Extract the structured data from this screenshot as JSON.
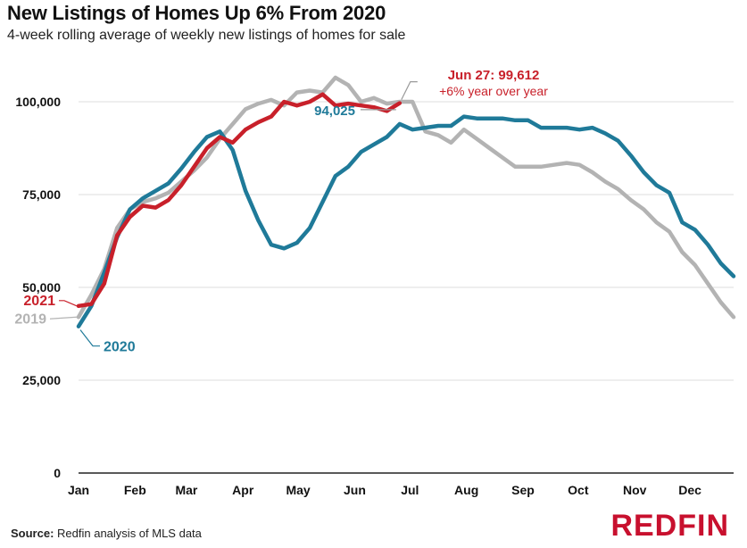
{
  "header": {
    "title": "New Listings of Homes Up 6% From 2020",
    "subtitle": "4-week rolling average of weekly new listings of homes for sale"
  },
  "footer": {
    "source_label": "Source:",
    "source_text": "Redfin analysis of MLS data",
    "brand": "REDFIN"
  },
  "colors": {
    "2019": "#b3b3b3",
    "2020": "#1f7a99",
    "2021": "#c8202a",
    "axis": "#222222",
    "grid": "#dddddd"
  },
  "chart_data": {
    "type": "line",
    "title": "New Listings of Homes Up 6% From 2020",
    "subtitle": "4-week rolling average of weekly new listings of homes for sale",
    "xlabel": "",
    "ylabel": "",
    "x_unit": "week of year",
    "xlim": [
      1,
      52
    ],
    "ylim": [
      0,
      106000
    ],
    "yticks": [
      {
        "value": 0,
        "label": "0"
      },
      {
        "value": 25000,
        "label": "25,000"
      },
      {
        "value": 50000,
        "label": "50,000"
      },
      {
        "value": 75000,
        "label": "75,000"
      },
      {
        "value": 100000,
        "label": "100,000"
      }
    ],
    "xticks": [
      {
        "value": 1,
        "label": "Jan"
      },
      {
        "value": 5.4,
        "label": "Feb"
      },
      {
        "value": 9.4,
        "label": "Mar"
      },
      {
        "value": 13.8,
        "label": "Apr"
      },
      {
        "value": 18.1,
        "label": "May"
      },
      {
        "value": 22.5,
        "label": "Jun"
      },
      {
        "value": 26.8,
        "label": "Jul"
      },
      {
        "value": 31.2,
        "label": "Aug"
      },
      {
        "value": 35.6,
        "label": "Sep"
      },
      {
        "value": 39.9,
        "label": "Oct"
      },
      {
        "value": 44.3,
        "label": "Nov"
      },
      {
        "value": 48.6,
        "label": "Dec"
      }
    ],
    "series": [
      {
        "name": "2019",
        "label": "2019",
        "x": [
          1,
          2,
          3,
          4,
          5,
          6,
          7,
          8,
          9,
          10,
          11,
          12,
          13,
          14,
          15,
          16,
          17,
          18,
          19,
          20,
          21,
          22,
          23,
          24,
          25,
          26,
          27,
          28,
          29,
          30,
          31,
          32,
          33,
          34,
          35,
          36,
          37,
          38,
          39,
          40,
          41,
          42,
          43,
          44,
          45,
          46,
          47,
          48,
          49,
          50,
          51,
          52
        ],
        "values": [
          42000,
          48000,
          55000,
          66000,
          71000,
          73000,
          74000,
          75500,
          78500,
          81500,
          85000,
          90000,
          94000,
          98000,
          99500,
          100500,
          99000,
          102500,
          103000,
          102500,
          106500,
          104500,
          100000,
          101000,
          99500,
          100000,
          100000,
          92000,
          91000,
          89000,
          92500,
          90000,
          87500,
          85000,
          82500,
          82500,
          82500,
          83000,
          83500,
          83000,
          81000,
          78500,
          76500,
          73500,
          71000,
          67500,
          65000,
          59500,
          56000,
          51000,
          46000,
          42000
        ]
      },
      {
        "name": "2020",
        "label": "2020",
        "x": [
          1,
          2,
          3,
          4,
          5,
          6,
          7,
          8,
          9,
          10,
          11,
          12,
          13,
          14,
          15,
          16,
          17,
          18,
          19,
          20,
          21,
          22,
          23,
          24,
          25,
          26,
          27,
          28,
          29,
          30,
          31,
          32,
          33,
          34,
          35,
          36,
          37,
          38,
          39,
          40,
          41,
          42,
          43,
          44,
          45,
          46,
          47,
          48,
          49,
          50,
          51,
          52
        ],
        "values": [
          39500,
          45000,
          54000,
          63500,
          71000,
          74000,
          76000,
          78000,
          82000,
          86500,
          90500,
          92000,
          87000,
          76000,
          68000,
          61500,
          60500,
          62000,
          66000,
          73000,
          80000,
          82500,
          86500,
          88500,
          90500,
          94025,
          92500,
          93000,
          93500,
          93500,
          96000,
          95500,
          95500,
          95500,
          95000,
          95000,
          93000,
          93000,
          93000,
          92500,
          93000,
          91500,
          89500,
          85500,
          81000,
          77500,
          75500,
          67500,
          65500,
          61500,
          56500,
          53000
        ]
      },
      {
        "name": "2021",
        "label": "2021",
        "x": [
          1,
          2,
          3,
          4,
          5,
          6,
          7,
          8,
          9,
          10,
          11,
          12,
          13,
          14,
          15,
          16,
          17,
          18,
          19,
          20,
          21,
          22,
          23,
          24,
          25,
          26
        ],
        "values": [
          45000,
          45500,
          51000,
          64000,
          69000,
          72000,
          71500,
          73500,
          77500,
          82500,
          87500,
          90500,
          89000,
          92500,
          94500,
          96000,
          100000,
          99000,
          100000,
          102000,
          99000,
          99500,
          99000,
          98500,
          97500,
          99612
        ]
      }
    ],
    "annotations": [
      {
        "series": "2021",
        "x": 26,
        "y": 99612,
        "line1": "Jun 27: 99,612",
        "line2": "+6% year over year"
      },
      {
        "series": "2020",
        "x": 26,
        "y": 94025,
        "text": "94,025"
      }
    ]
  }
}
